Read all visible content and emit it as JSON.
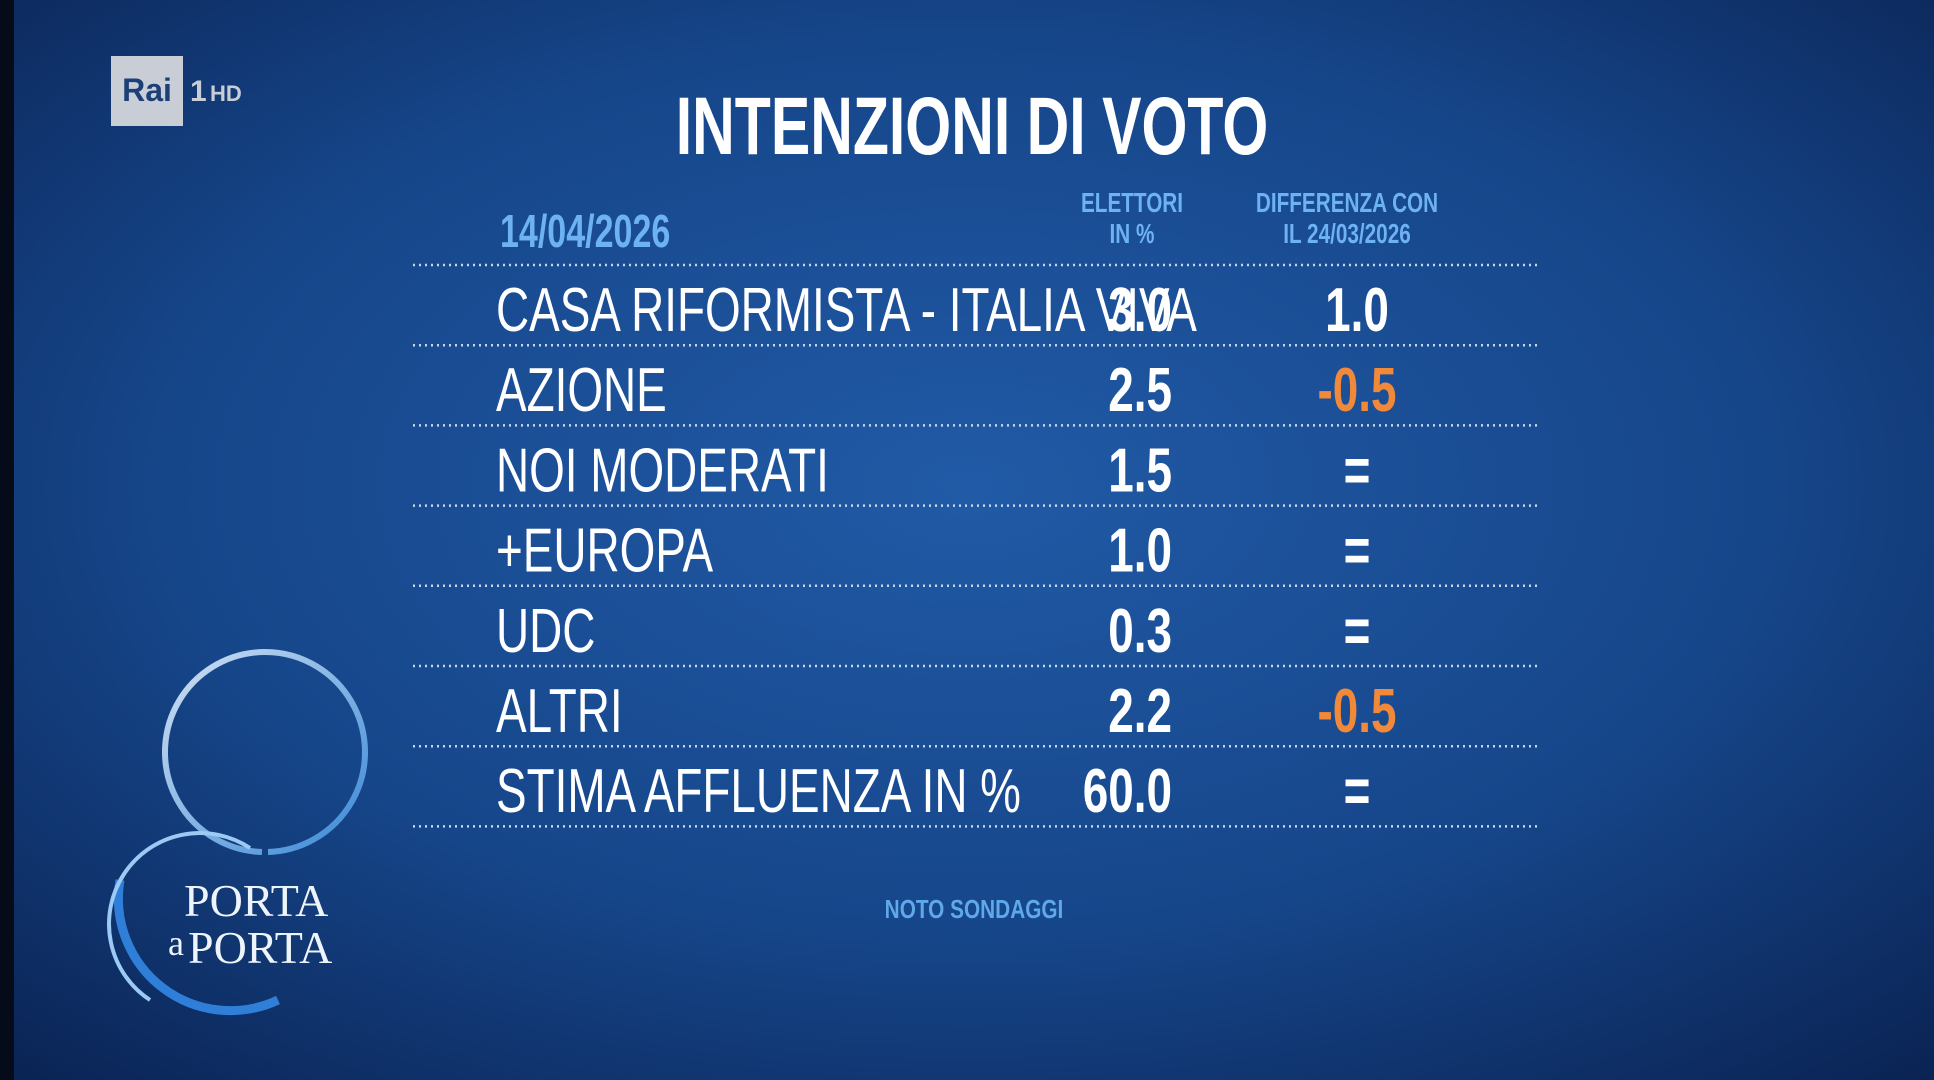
{
  "logo": {
    "brand": "Rai",
    "channel": "1",
    "quality": "HD"
  },
  "title": "INTENZIONI DI VOTO",
  "table": {
    "date": "14/04/2026",
    "headers": [
      [
        "ELETTORI",
        "IN %"
      ],
      [
        "DIFFERENZA CON",
        "IL 24/03/2026"
      ]
    ],
    "rows": [
      [
        "CASA RIFORMISTA - ITALIA VIVA",
        "3.0",
        "1.0"
      ],
      [
        "AZIONE",
        "2.5",
        "-0.5"
      ],
      [
        "NOI MODERATI",
        "1.5",
        "="
      ],
      [
        "+EUROPA",
        "1.0",
        "="
      ],
      [
        "UDC",
        "0.3",
        "="
      ],
      [
        "ALTRI",
        "2.2",
        "-0.5"
      ],
      [
        "STIMA AFFLUENZA IN %",
        "60.0",
        "="
      ]
    ]
  },
  "source": "NOTO SONDAGGI",
  "show_logo": [
    "PORTA",
    "a",
    "PORTA"
  ]
}
